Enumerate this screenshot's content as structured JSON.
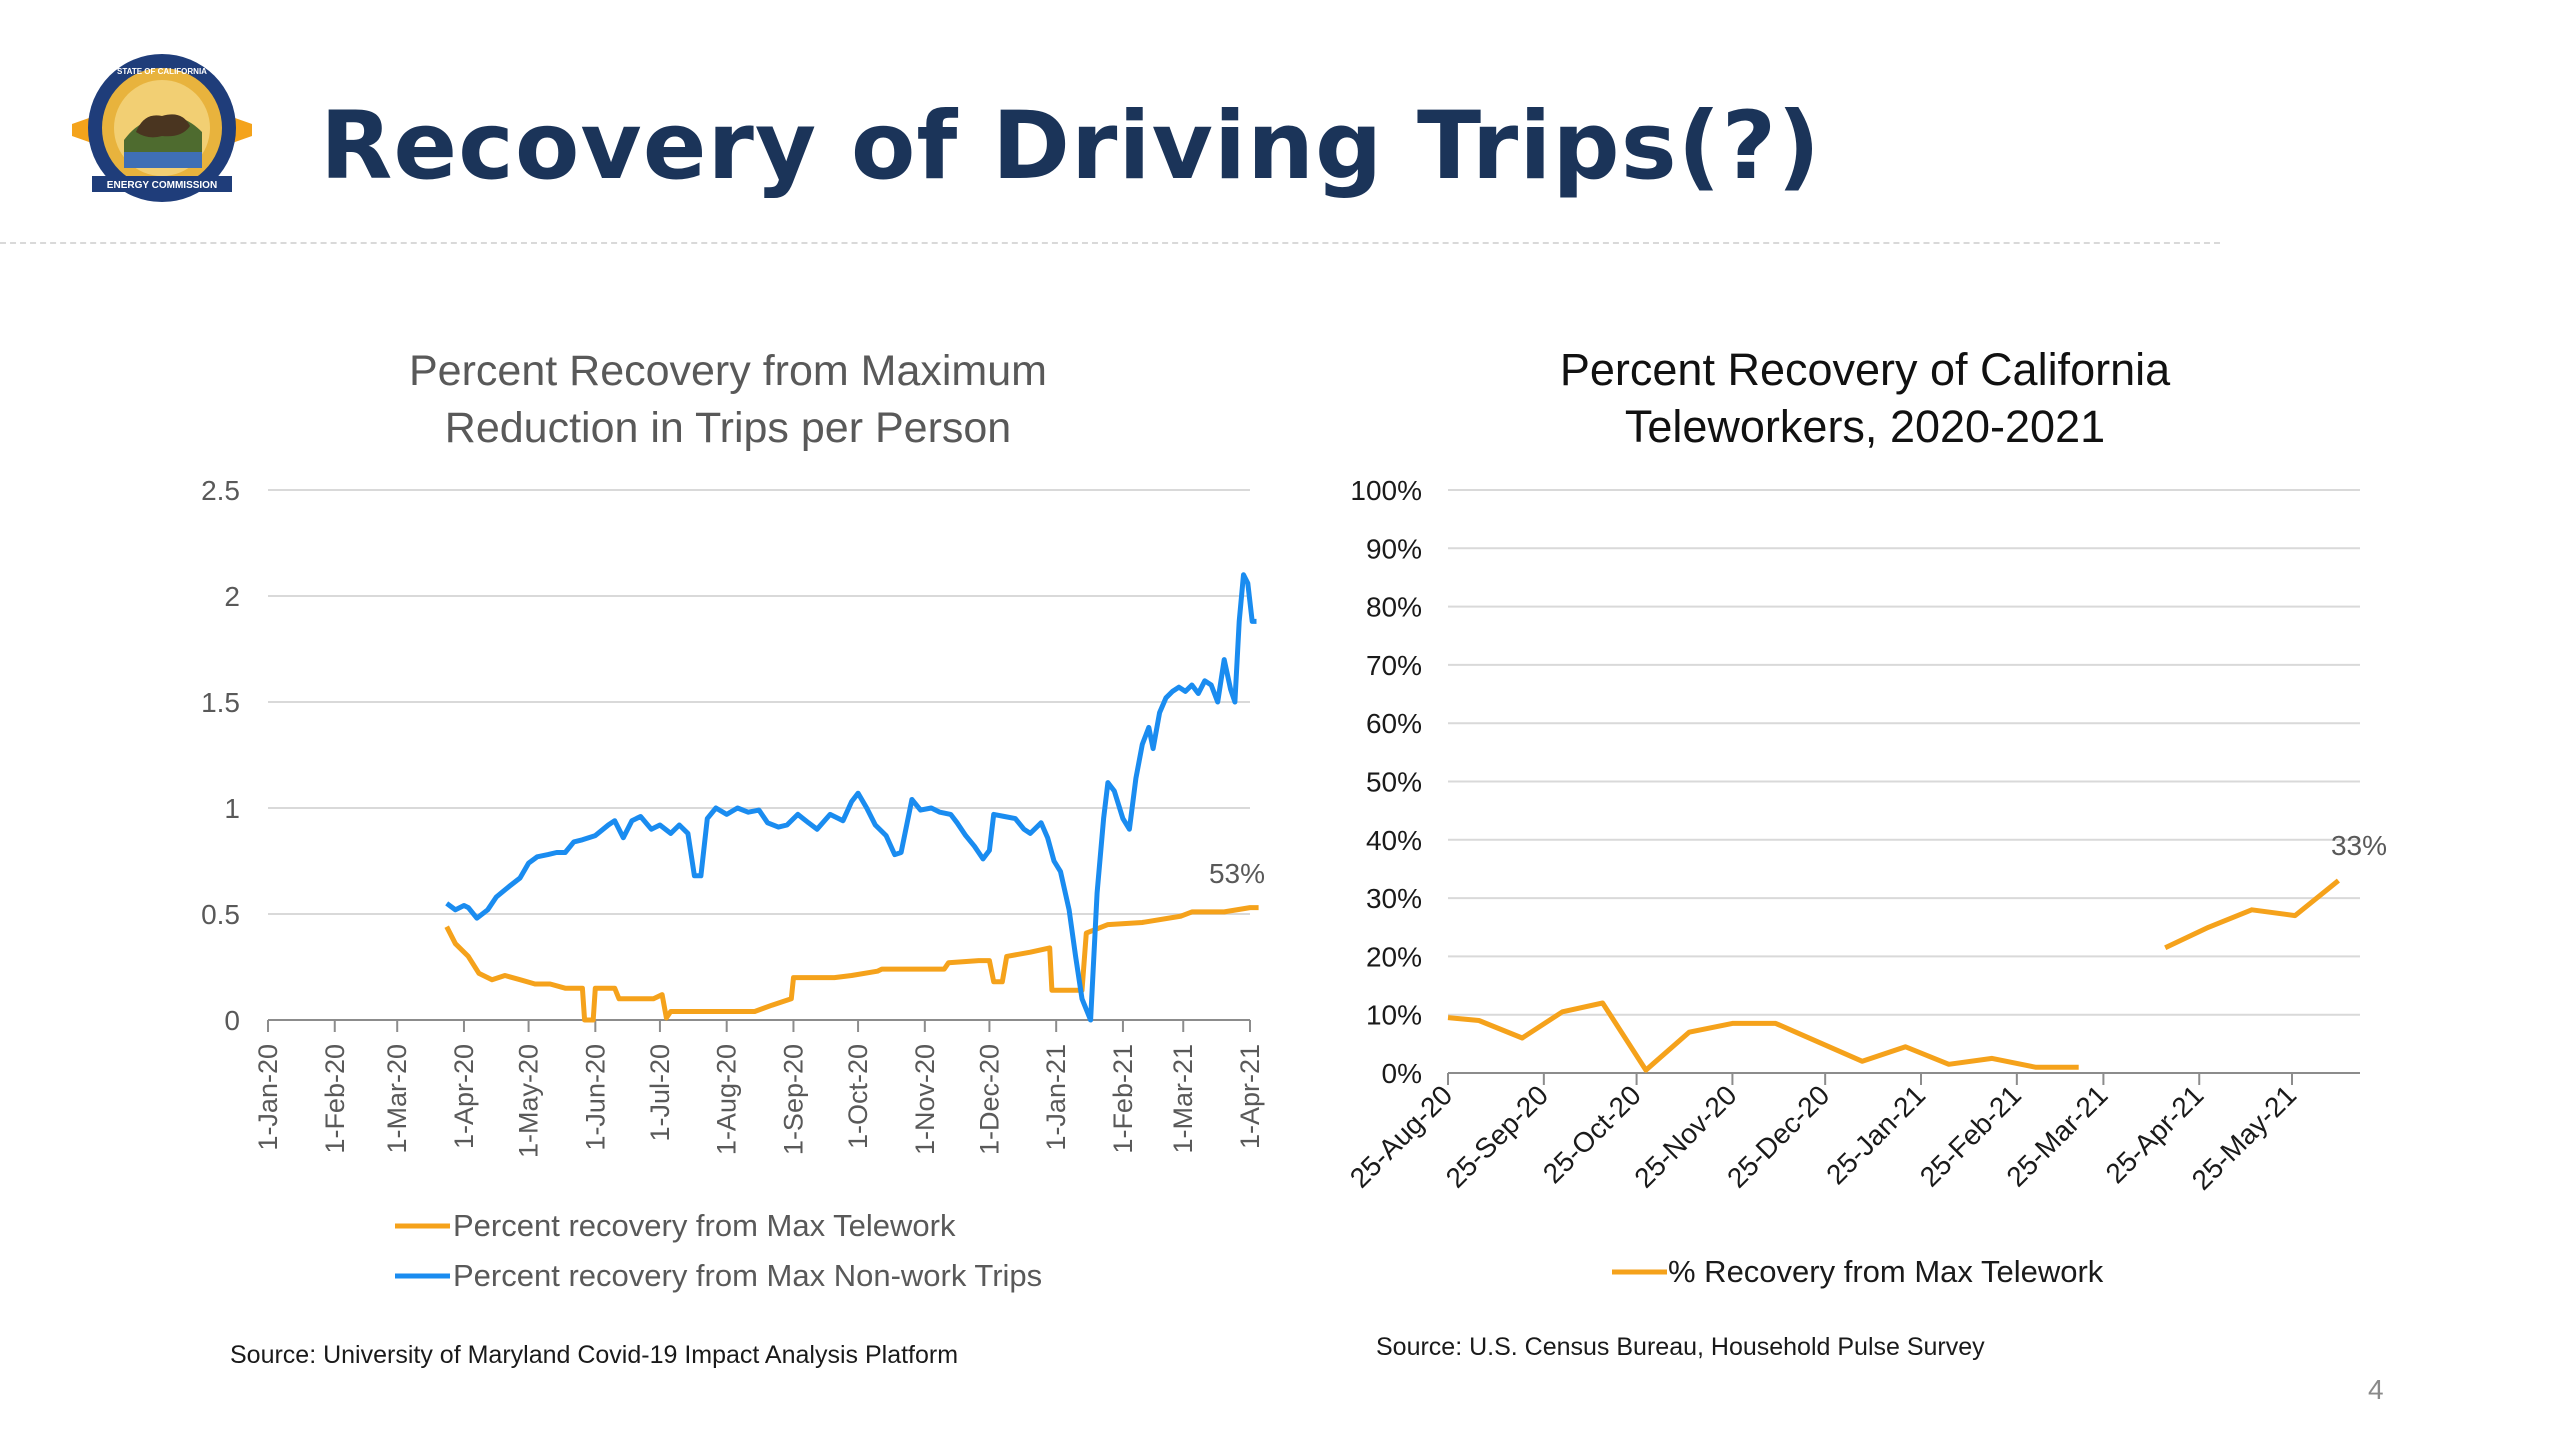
{
  "slide": {
    "title": "Recovery of Driving Trips(?)",
    "page_number": "4",
    "logo": {
      "text_top": "STATE OF CALIFORNIA",
      "text_bottom": "ENERGY COMMISSION"
    }
  },
  "colors": {
    "title": "#1b3459",
    "orange_series": "#f5a21b",
    "blue_series": "#1a8cf0",
    "axis_text": "#595959",
    "gridline": "#d9d9d9"
  },
  "chart_data": [
    {
      "type": "line",
      "title": "Percent Recovery from Maximum Reduction in Trips per Person",
      "title_lines": [
        "Percent Recovery from Maximum",
        "Reduction in Trips per Person"
      ],
      "x_ticks": [
        "1-Jan-20",
        "1-Feb-20",
        "1-Mar-20",
        "1-Apr-20",
        "1-May-20",
        "1-Jun-20",
        "1-Jul-20",
        "1-Aug-20",
        "1-Sep-20",
        "1-Oct-20",
        "1-Nov-20",
        "1-Dec-20",
        "1-Jan-21",
        "1-Feb-21",
        "1-Mar-21",
        "1-Apr-21"
      ],
      "y_ticks": [
        "0",
        "0.5",
        "1",
        "1.5",
        "2",
        "2.5"
      ],
      "ylim": [
        0,
        2.5
      ],
      "grid": true,
      "legend_position": "bottom",
      "annotation": "53%",
      "source": "Source: University of Maryland Covid-19 Impact Analysis Platform",
      "series": [
        {
          "name": "Percent recovery from Max Telework",
          "color": "#f5a21b",
          "points": [
            [
              "2020-03-24",
              0.44
            ],
            [
              "2020-03-28",
              0.36
            ],
            [
              "2020-04-03",
              0.3
            ],
            [
              "2020-04-08",
              0.22
            ],
            [
              "2020-04-14",
              0.19
            ],
            [
              "2020-04-20",
              0.21
            ],
            [
              "2020-04-27",
              0.19
            ],
            [
              "2020-05-04",
              0.17
            ],
            [
              "2020-05-11",
              0.17
            ],
            [
              "2020-05-18",
              0.15
            ],
            [
              "2020-05-26",
              0.15
            ],
            [
              "2020-05-27",
              0.0
            ],
            [
              "2020-05-31",
              0.0
            ],
            [
              "2020-06-01",
              0.15
            ],
            [
              "2020-06-10",
              0.15
            ],
            [
              "2020-06-12",
              0.1
            ],
            [
              "2020-06-28",
              0.1
            ],
            [
              "2020-07-02",
              0.12
            ],
            [
              "2020-07-04",
              0.01
            ],
            [
              "2020-07-06",
              0.04
            ],
            [
              "2020-08-14",
              0.04
            ],
            [
              "2020-08-22",
              0.07
            ],
            [
              "2020-08-31",
              0.1
            ],
            [
              "2020-09-01",
              0.2
            ],
            [
              "2020-09-20",
              0.2
            ],
            [
              "2020-09-28",
              0.21
            ],
            [
              "2020-10-10",
              0.23
            ],
            [
              "2020-10-12",
              0.24
            ],
            [
              "2020-11-10",
              0.24
            ],
            [
              "2020-11-12",
              0.27
            ],
            [
              "2020-11-26",
              0.28
            ],
            [
              "2020-12-01",
              0.28
            ],
            [
              "2020-12-03",
              0.18
            ],
            [
              "2020-12-07",
              0.18
            ],
            [
              "2020-12-09",
              0.3
            ],
            [
              "2020-12-20",
              0.32
            ],
            [
              "2020-12-29",
              0.34
            ],
            [
              "2020-12-30",
              0.14
            ],
            [
              "2021-01-13",
              0.14
            ],
            [
              "2021-01-15",
              0.41
            ],
            [
              "2021-01-25",
              0.45
            ],
            [
              "2021-02-10",
              0.46
            ],
            [
              "2021-02-28",
              0.49
            ],
            [
              "2021-03-05",
              0.51
            ],
            [
              "2021-03-20",
              0.51
            ],
            [
              "2021-04-01",
              0.53
            ],
            [
              "2021-04-05",
              0.53
            ]
          ]
        },
        {
          "name": "Percent recovery from Max Non-work Trips",
          "color": "#1a8cf0",
          "points": [
            [
              "2020-03-24",
              0.55
            ],
            [
              "2020-03-28",
              0.52
            ],
            [
              "2020-04-01",
              0.54
            ],
            [
              "2020-04-03",
              0.53
            ],
            [
              "2020-04-07",
              0.48
            ],
            [
              "2020-04-12",
              0.52
            ],
            [
              "2020-04-16",
              0.58
            ],
            [
              "2020-04-22",
              0.63
            ],
            [
              "2020-04-27",
              0.67
            ],
            [
              "2020-05-01",
              0.74
            ],
            [
              "2020-05-05",
              0.77
            ],
            [
              "2020-05-10",
              0.78
            ],
            [
              "2020-05-14",
              0.79
            ],
            [
              "2020-05-18",
              0.79
            ],
            [
              "2020-05-22",
              0.84
            ],
            [
              "2020-05-26",
              0.85
            ],
            [
              "2020-06-01",
              0.87
            ],
            [
              "2020-06-07",
              0.92
            ],
            [
              "2020-06-10",
              0.94
            ],
            [
              "2020-06-14",
              0.86
            ],
            [
              "2020-06-18",
              0.94
            ],
            [
              "2020-06-22",
              0.96
            ],
            [
              "2020-06-27",
              0.9
            ],
            [
              "2020-07-01",
              0.92
            ],
            [
              "2020-07-06",
              0.88
            ],
            [
              "2020-07-10",
              0.92
            ],
            [
              "2020-07-14",
              0.88
            ],
            [
              "2020-07-17",
              0.68
            ],
            [
              "2020-07-20",
              0.68
            ],
            [
              "2020-07-23",
              0.95
            ],
            [
              "2020-07-27",
              1.0
            ],
            [
              "2020-08-01",
              0.97
            ],
            [
              "2020-08-06",
              1.0
            ],
            [
              "2020-08-11",
              0.98
            ],
            [
              "2020-08-16",
              0.99
            ],
            [
              "2020-08-20",
              0.93
            ],
            [
              "2020-08-25",
              0.91
            ],
            [
              "2020-08-29",
              0.92
            ],
            [
              "2020-09-03",
              0.97
            ],
            [
              "2020-09-08",
              0.93
            ],
            [
              "2020-09-12",
              0.9
            ],
            [
              "2020-09-18",
              0.97
            ],
            [
              "2020-09-24",
              0.94
            ],
            [
              "2020-09-28",
              1.03
            ],
            [
              "2020-10-01",
              1.07
            ],
            [
              "2020-10-05",
              1.0
            ],
            [
              "2020-10-09",
              0.92
            ],
            [
              "2020-10-14",
              0.87
            ],
            [
              "2020-10-18",
              0.78
            ],
            [
              "2020-10-21",
              0.79
            ],
            [
              "2020-10-26",
              1.04
            ],
            [
              "2020-10-30",
              0.99
            ],
            [
              "2020-11-04",
              1.0
            ],
            [
              "2020-11-08",
              0.98
            ],
            [
              "2020-11-13",
              0.97
            ],
            [
              "2020-11-16",
              0.93
            ],
            [
              "2020-11-20",
              0.87
            ],
            [
              "2020-11-24",
              0.82
            ],
            [
              "2020-11-28",
              0.76
            ],
            [
              "2020-12-01",
              0.8
            ],
            [
              "2020-12-03",
              0.97
            ],
            [
              "2020-12-08",
              0.96
            ],
            [
              "2020-12-13",
              0.95
            ],
            [
              "2020-12-17",
              0.9
            ],
            [
              "2020-12-20",
              0.88
            ],
            [
              "2020-12-25",
              0.93
            ],
            [
              "2020-12-28",
              0.86
            ],
            [
              "2020-12-31",
              0.75
            ],
            [
              "2021-01-03",
              0.7
            ],
            [
              "2021-01-07",
              0.52
            ],
            [
              "2021-01-10",
              0.3
            ],
            [
              "2021-01-13",
              0.1
            ],
            [
              "2021-01-17",
              0.0
            ],
            [
              "2021-01-20",
              0.6
            ],
            [
              "2021-01-23",
              0.95
            ],
            [
              "2021-01-25",
              1.12
            ],
            [
              "2021-01-28",
              1.08
            ],
            [
              "2021-02-01",
              0.95
            ],
            [
              "2021-02-04",
              0.9
            ],
            [
              "2021-02-07",
              1.14
            ],
            [
              "2021-02-10",
              1.3
            ],
            [
              "2021-02-13",
              1.38
            ],
            [
              "2021-02-15",
              1.28
            ],
            [
              "2021-02-18",
              1.45
            ],
            [
              "2021-02-21",
              1.52
            ],
            [
              "2021-02-24",
              1.55
            ],
            [
              "2021-02-27",
              1.57
            ],
            [
              "2021-03-02",
              1.55
            ],
            [
              "2021-03-05",
              1.58
            ],
            [
              "2021-03-08",
              1.54
            ],
            [
              "2021-03-11",
              1.6
            ],
            [
              "2021-03-14",
              1.58
            ],
            [
              "2021-03-17",
              1.5
            ],
            [
              "2021-03-20",
              1.7
            ],
            [
              "2021-03-23",
              1.56
            ],
            [
              "2021-03-25",
              1.5
            ],
            [
              "2021-03-27",
              1.88
            ],
            [
              "2021-03-29",
              2.1
            ],
            [
              "2021-03-31",
              2.06
            ],
            [
              "2021-04-02",
              1.88
            ],
            [
              "2021-04-04",
              1.88
            ]
          ]
        }
      ]
    },
    {
      "type": "line",
      "title": "Percent Recovery of California Teleworkers, 2020-2021",
      "title_lines": [
        "Percent Recovery of California",
        "Teleworkers, 2020-2021"
      ],
      "x_ticks": [
        "25-Aug-20",
        "25-Sep-20",
        "25-Oct-20",
        "25-Nov-20",
        "25-Dec-20",
        "25-Jan-21",
        "25-Feb-21",
        "25-Mar-21",
        "25-Apr-21",
        "25-May-21"
      ],
      "y_ticks": [
        "0%",
        "10%",
        "20%",
        "30%",
        "40%",
        "50%",
        "60%",
        "70%",
        "80%",
        "90%",
        "100%"
      ],
      "ylim": [
        0,
        100
      ],
      "grid": true,
      "legend_position": "bottom",
      "annotation": "33%",
      "source": "Source: U.S. Census Bureau, Household Pulse Survey",
      "series": [
        {
          "name": "% Recovery from Max Telework",
          "color": "#f5a21b",
          "segments": [
            [
              [
                "2020-08-25",
                9.5
              ],
              [
                "2020-09-04",
                9.0
              ],
              [
                "2020-09-18",
                6.0
              ],
              [
                "2020-10-01",
                10.5
              ],
              [
                "2020-10-14",
                12.0
              ],
              [
                "2020-10-28",
                0.5
              ],
              [
                "2020-11-11",
                7.0
              ],
              [
                "2020-11-25",
                8.5
              ],
              [
                "2020-12-09",
                8.5
              ],
              [
                "2021-01-06",
                2.0
              ],
              [
                "2021-01-20",
                4.5
              ],
              [
                "2021-02-03",
                1.5
              ],
              [
                "2021-02-17",
                2.5
              ],
              [
                "2021-03-03",
                1.0
              ],
              [
                "2021-03-17",
                1.0
              ]
            ],
            [
              [
                "2021-04-14",
                21.5
              ],
              [
                "2021-04-28",
                25.0
              ],
              [
                "2021-05-12",
                28.0
              ],
              [
                "2021-05-26",
                27.0
              ],
              [
                "2021-06-09",
                33.0
              ]
            ]
          ]
        }
      ]
    }
  ]
}
